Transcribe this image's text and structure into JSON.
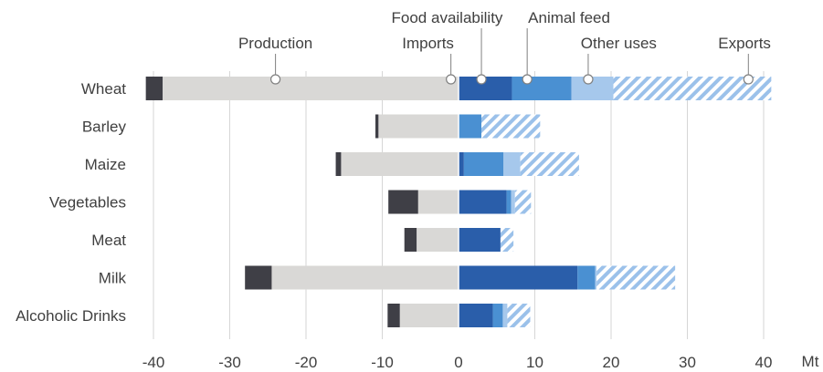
{
  "chart_data": {
    "type": "bar",
    "orientation": "horizontal",
    "stacked": true,
    "unit": "Mt",
    "categories": [
      "Wheat",
      "Barley",
      "Maize",
      "Vegetables",
      "Meat",
      "Milk",
      "Alcoholic Drinks"
    ],
    "xlim": [
      -41,
      41
    ],
    "x_ticks": [
      -40,
      -30,
      -20,
      -10,
      0,
      10,
      20,
      30,
      40
    ],
    "x_tick_labels": [
      "-40",
      "-30",
      "-20",
      "-10",
      "0",
      "10",
      "20",
      "30",
      "40"
    ],
    "grid": "vertical",
    "series": [
      {
        "name": "Production",
        "side": "negative",
        "color": "#d9d8d6",
        "pattern": "solid",
        "values": [
          -38.8,
          -10.5,
          -15.4,
          -5.3,
          -5.5,
          -24.5,
          -7.7
        ]
      },
      {
        "name": "Imports",
        "side": "negative",
        "color": "#3f3f46",
        "pattern": "solid",
        "values": [
          -2.2,
          -0.4,
          -0.7,
          -3.9,
          -1.6,
          -3.5,
          -1.6
        ]
      },
      {
        "name": "Food availability",
        "side": "positive",
        "color": "#2a5eaa",
        "pattern": "solid",
        "values": [
          7.0,
          0.0,
          0.7,
          6.3,
          5.5,
          15.6,
          4.5
        ]
      },
      {
        "name": "Animal feed",
        "side": "positive",
        "color": "#4a90d2",
        "pattern": "solid",
        "values": [
          7.8,
          3.0,
          5.2,
          0.6,
          0.0,
          2.3,
          1.3
        ]
      },
      {
        "name": "Other uses",
        "side": "positive",
        "color": "#a6c8ec",
        "pattern": "solid",
        "values": [
          5.5,
          0.0,
          2.2,
          0.5,
          0.0,
          0.2,
          0.6
        ]
      },
      {
        "name": "Exports",
        "side": "positive",
        "color": "#9bc1ea",
        "pattern": "hatched",
        "values": [
          20.7,
          7.7,
          7.7,
          2.1,
          1.7,
          10.3,
          3.0
        ]
      }
    ],
    "annotations": [
      {
        "text": "Production",
        "series": "Production",
        "category": "Wheat",
        "marker_x": -24,
        "label_x": -24,
        "row": 2,
        "anchor": "middle"
      },
      {
        "text": "Imports",
        "series": "Imports",
        "category": "Wheat",
        "marker_x": -1,
        "label_x": -4,
        "row": 1,
        "anchor": "middle"
      },
      {
        "text": "Food availability",
        "series": "Food availability",
        "category": "Wheat",
        "marker_x": 3,
        "label_x": -1.5,
        "row": 0,
        "anchor": "middle"
      },
      {
        "text": "Animal feed",
        "series": "Animal feed",
        "category": "Wheat",
        "marker_x": 9,
        "label_x": 14.5,
        "row": 0,
        "anchor": "middle"
      },
      {
        "text": "Other uses",
        "series": "Other uses",
        "category": "Wheat",
        "marker_x": 17,
        "label_x": 21,
        "row": 1,
        "anchor": "middle"
      },
      {
        "text": "Exports",
        "series": "Exports",
        "category": "Wheat",
        "marker_x": 38,
        "label_x": 37.5,
        "row": 1,
        "anchor": "middle"
      }
    ]
  }
}
